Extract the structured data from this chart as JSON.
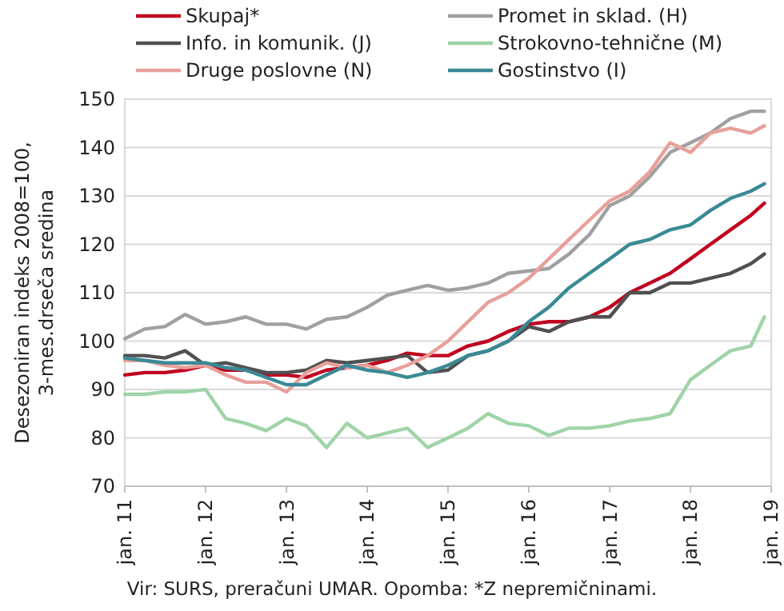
{
  "chart_data": {
    "type": "line",
    "ylabel": "Desezoniran indeks 2008=100,\n3-mes.drseča sredina",
    "annotations": [
      "Vir: SURS, preračuni UMAR. Opomba: *Z nepremičninami."
    ],
    "x": [
      "2011-01",
      "2011-04",
      "2011-07",
      "2011-10",
      "2012-01",
      "2012-04",
      "2012-07",
      "2012-10",
      "2013-01",
      "2013-04",
      "2013-07",
      "2013-10",
      "2014-01",
      "2014-04",
      "2014-07",
      "2014-10",
      "2015-01",
      "2015-04",
      "2015-07",
      "2015-10",
      "2016-01",
      "2016-04",
      "2016-07",
      "2016-10",
      "2017-01",
      "2017-04",
      "2017-07",
      "2017-10",
      "2018-01",
      "2018-04",
      "2018-07",
      "2018-10",
      "2018-12"
    ],
    "series": [
      {
        "name": "Skupaj*",
        "color": "#c0001e",
        "values": [
          93,
          93.5,
          93.5,
          94,
          95,
          94,
          94,
          93,
          93,
          92.5,
          94,
          94.5,
          95,
          96,
          97.5,
          97,
          97,
          99,
          100,
          102,
          103.5,
          104,
          104,
          105,
          107,
          110,
          112,
          114,
          117,
          120,
          123,
          126,
          128.5
        ]
      },
      {
        "name": "Promet in sklad. (H)",
        "color": "#a0a0a0",
        "values": [
          100.5,
          102.5,
          103,
          105.5,
          103.5,
          104,
          105,
          103.5,
          103.5,
          102.5,
          104.5,
          105,
          107,
          109.5,
          110.5,
          111.5,
          110.5,
          111,
          112,
          114,
          114.5,
          115,
          118,
          122,
          128,
          130,
          134,
          139,
          141,
          143,
          146,
          147.5,
          147.5
        ]
      },
      {
        "name": "Info. in komunik. (J)",
        "color": "#505050",
        "values": [
          97,
          97,
          96.5,
          98,
          95,
          95.5,
          94.5,
          93.5,
          93.5,
          94,
          96,
          95.5,
          96,
          96.5,
          97,
          93.5,
          94,
          97,
          98,
          100,
          103,
          102,
          104,
          105,
          105,
          110,
          110,
          112,
          112,
          113,
          114,
          116,
          118
        ]
      },
      {
        "name": "Strokovno-tehnične (M)",
        "color": "#9fd4a8",
        "values": [
          89,
          89,
          89.5,
          89.5,
          90,
          84,
          83,
          81.5,
          84,
          82.5,
          78,
          83,
          80,
          81,
          82,
          78,
          80,
          82,
          85,
          83,
          82.5,
          80.5,
          82,
          82,
          82.5,
          83.5,
          84,
          85,
          92,
          95,
          98,
          99,
          105
        ]
      },
      {
        "name": "Druge poslovne (N)",
        "color": "#e8a09a",
        "values": [
          96,
          96,
          95,
          94.5,
          95,
          93,
          91.5,
          91.5,
          89.5,
          93.5,
          95.5,
          94.5,
          95,
          93.5,
          95,
          97,
          100,
          104,
          108,
          110,
          113,
          117,
          121,
          125,
          129,
          131,
          135,
          141,
          139,
          143,
          144,
          143,
          144.5
        ]
      },
      {
        "name": "Gostinstvo (I)",
        "color": "#3a8a96",
        "values": [
          96.5,
          96,
          95.5,
          95.5,
          95.5,
          94.5,
          94,
          92.5,
          91,
          91,
          93,
          95,
          94,
          93.5,
          92.5,
          93.5,
          95,
          97,
          98,
          100,
          104,
          107,
          111,
          114,
          117,
          120,
          121,
          123,
          124,
          127,
          129.5,
          131,
          132.5
        ]
      }
    ],
    "xlim": [
      "2011-01",
      "2019-01"
    ],
    "xticks": [
      {
        "value": "2011-01",
        "label": "jan. 11"
      },
      {
        "value": "2012-01",
        "label": "jan. 12"
      },
      {
        "value": "2013-01",
        "label": "jan. 13"
      },
      {
        "value": "2014-01",
        "label": "jan. 14"
      },
      {
        "value": "2015-01",
        "label": "jan. 15"
      },
      {
        "value": "2016-01",
        "label": "jan. 16"
      },
      {
        "value": "2017-01",
        "label": "jan. 17"
      },
      {
        "value": "2018-01",
        "label": "jan. 18"
      },
      {
        "value": "2019-01",
        "label": "jan. 19"
      }
    ],
    "ylim": [
      70,
      150
    ],
    "yticks": [
      70,
      80,
      90,
      100,
      110,
      120,
      130,
      140,
      150
    ],
    "grid": "y",
    "legend": "top",
    "marker": "none",
    "line_style": "solid"
  }
}
